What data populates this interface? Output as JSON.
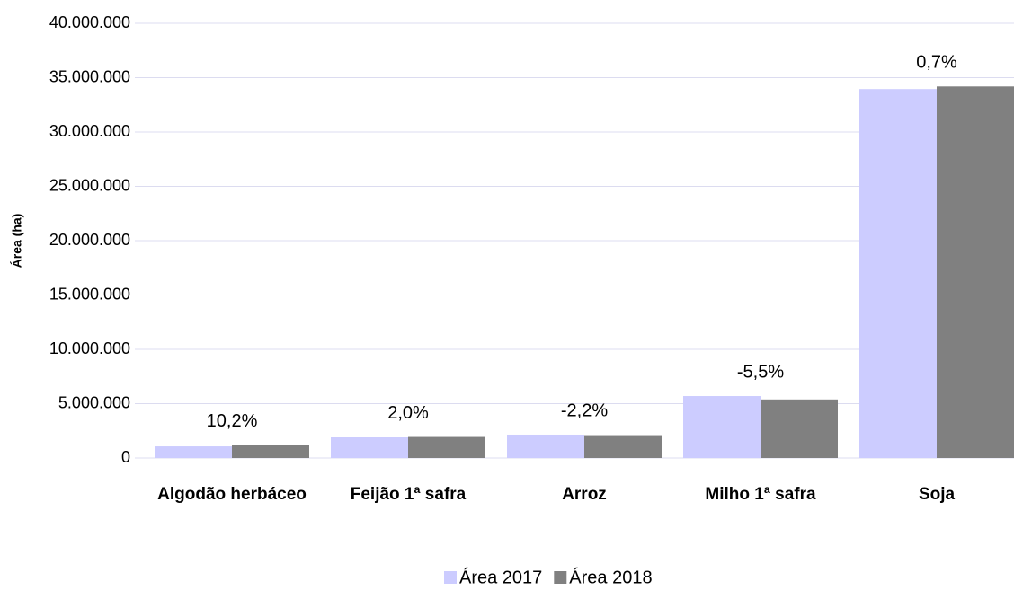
{
  "chart_data": {
    "type": "bar",
    "y_label": "Área (ha)",
    "categories": [
      "Algodão herbáceo",
      "Feijão 1ª safra",
      "Arroz",
      "Milho 1ª safra",
      "Soja"
    ],
    "series": [
      {
        "name": "Área 2017",
        "color": "#ccccff",
        "values": [
          1070000,
          1900000,
          2150000,
          5700000,
          33950000
        ]
      },
      {
        "name": "Área 2018",
        "color": "#808080",
        "values": [
          1179000,
          1938000,
          2103000,
          5387000,
          34190000
        ]
      }
    ],
    "changes": [
      10.2,
      2.0,
      -2.2,
      -5.5,
      0.7
    ],
    "change_labels": [
      "10,2%",
      "2,0%",
      "-2,2%",
      "-5,5%",
      "0,7%"
    ],
    "ylim": [
      0,
      40000000
    ],
    "yticks": [
      0,
      {
        "value": 5000000,
        "label": "5.000.000"
      },
      {
        "value": 10000000,
        "label": "10.000.000"
      },
      {
        "value": 15000000,
        "label": "15.000.000"
      },
      {
        "value": 20000000,
        "label": "20.000.000"
      },
      {
        "value": 25000000,
        "label": "25.000.000"
      },
      {
        "value": 30000000,
        "label": "30.000.000"
      },
      {
        "value": 35000000,
        "label": "35.000.000"
      },
      {
        "value": 40000000,
        "label": "40.000.000"
      }
    ],
    "grid": true,
    "legend": "bottom"
  }
}
